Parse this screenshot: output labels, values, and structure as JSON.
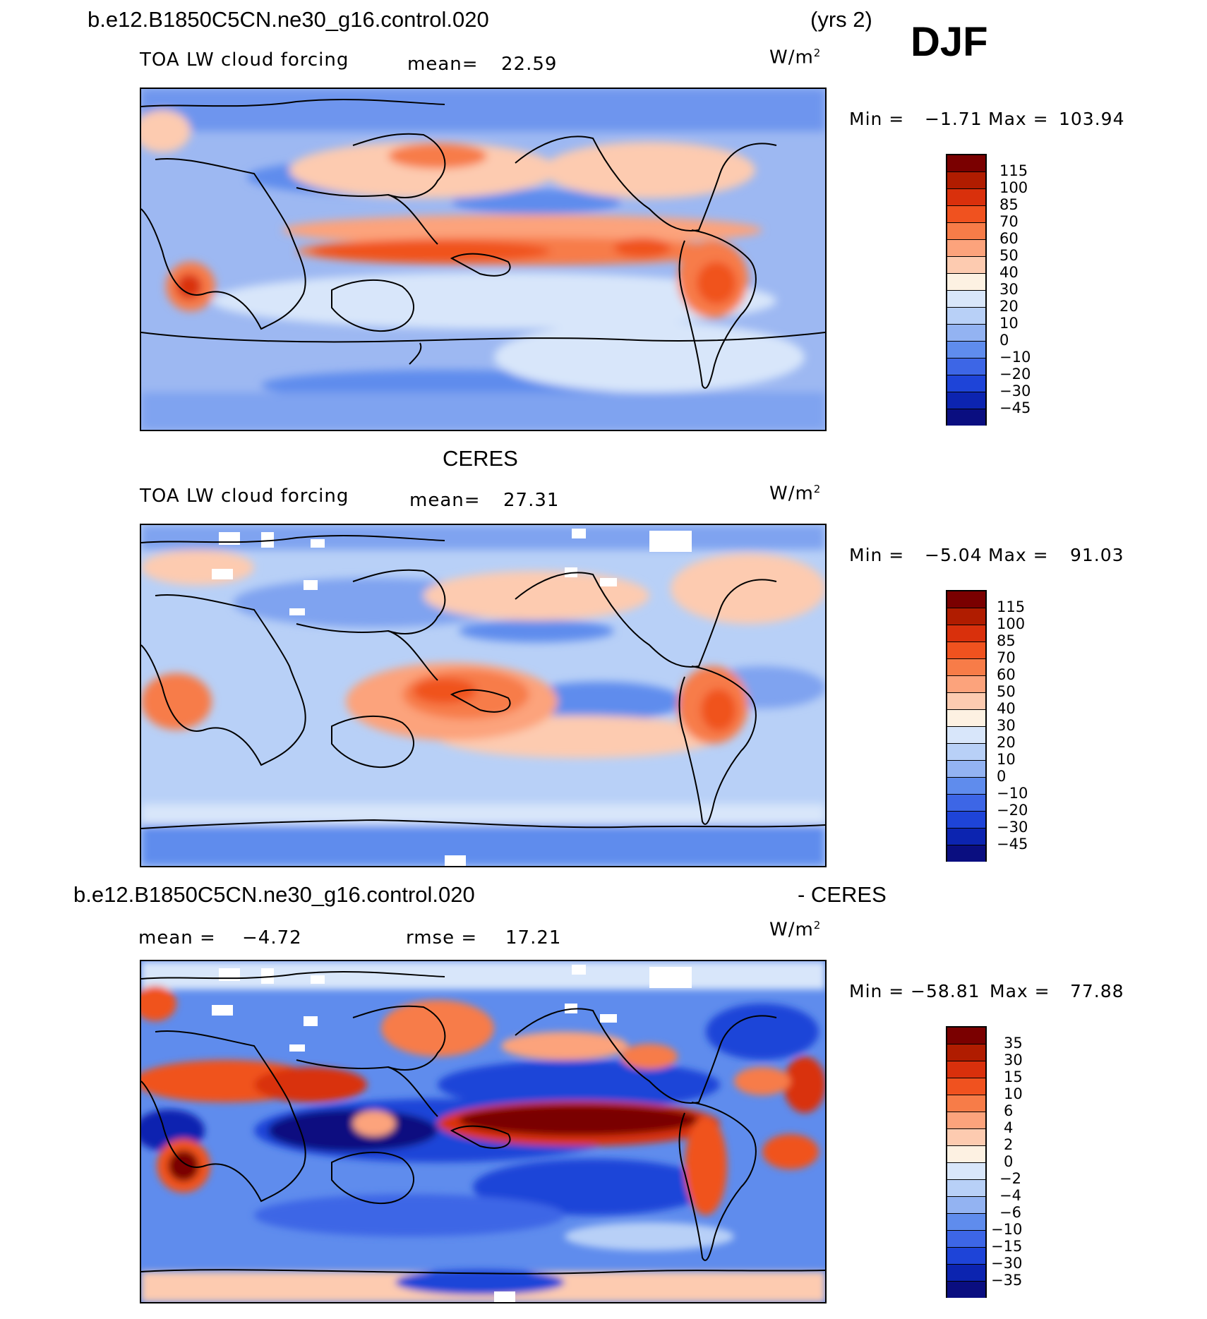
{
  "header": {
    "case_name": "b.e12.B1850C5CN.ne30_g16.control.020",
    "years": "(yrs 2)",
    "season": "DJF"
  },
  "panels": [
    {
      "id": "model",
      "title": "b.e12.B1850C5CN.ne30_g16.control.020",
      "subtitle": "TOA LW cloud forcing",
      "mean_label": "mean=",
      "mean_value": "22.59",
      "units": "W/m",
      "units_sup": "2",
      "min_label": "Min =",
      "min_value": "−1.71",
      "max_label": "Max =",
      "max_value": "103.94",
      "colorbar_labels": [
        "115",
        "100",
        "85",
        "70",
        "60",
        "50",
        "40",
        "30",
        "20",
        "10",
        "0",
        "−10",
        "−20",
        "−30",
        "−45"
      ]
    },
    {
      "id": "obs",
      "title": "CERES",
      "subtitle": "TOA LW cloud forcing",
      "mean_label": "mean=",
      "mean_value": "27.31",
      "units": "W/m",
      "units_sup": "2",
      "min_label": "Min =",
      "min_value": "−5.04",
      "max_label": "Max =",
      "max_value": "91.03",
      "colorbar_labels": [
        "115",
        "100",
        "85",
        "70",
        "60",
        "50",
        "40",
        "30",
        "20",
        "10",
        "0",
        "−10",
        "−20",
        "−30",
        "−45"
      ]
    },
    {
      "id": "diff",
      "title": "b.e12.B1850C5CN.ne30_g16.control.020",
      "title_suffix": "- CERES",
      "mean_label": "mean =",
      "mean_value": "−4.72",
      "rmse_label": "rmse =",
      "rmse_value": "17.21",
      "units": "W/m",
      "units_sup": "2",
      "min_label": "Min =",
      "min_value": "−58.81",
      "max_label": "Max =",
      "max_value": "77.88",
      "colorbar_labels": [
        "35",
        "30",
        "15",
        "10",
        "6",
        "4",
        "2",
        "0",
        "−2",
        "−4",
        "−6",
        "−10",
        "−15",
        "−30",
        "−35"
      ]
    }
  ],
  "chart_data": [
    {
      "type": "heatmap",
      "title": "b.e12.B1850C5CN.ne30_g16.control.020 TOA LW cloud forcing (DJF)",
      "units": "W/m2",
      "mean": 22.59,
      "min": -1.71,
      "max": 103.94,
      "contour_levels": [
        -45,
        -30,
        -20,
        -10,
        0,
        10,
        20,
        30,
        40,
        50,
        60,
        70,
        85,
        100,
        115
      ]
    },
    {
      "type": "heatmap",
      "title": "CERES TOA LW cloud forcing (DJF)",
      "units": "W/m2",
      "mean": 27.31,
      "min": -5.04,
      "max": 91.03,
      "contour_levels": [
        -45,
        -30,
        -20,
        -10,
        0,
        10,
        20,
        30,
        40,
        50,
        60,
        70,
        85,
        100,
        115
      ]
    },
    {
      "type": "heatmap",
      "title": "b.e12.B1850C5CN.ne30_g16.control.020 - CERES",
      "units": "W/m2",
      "mean": -4.72,
      "rmse": 17.21,
      "min": -58.81,
      "max": 77.88,
      "contour_levels": [
        -35,
        -30,
        -15,
        -10,
        -6,
        -4,
        -2,
        0,
        2,
        4,
        6,
        10,
        15,
        30,
        35
      ]
    }
  ],
  "colors": {
    "scale": [
      "#7a0000",
      "#b01c00",
      "#d9300c",
      "#f0521f",
      "#f77c48",
      "#fca37c",
      "#fdcbb0",
      "#fdf1e2",
      "#d8e6fa",
      "#b8d0f7",
      "#93b3f2",
      "#5f8ced",
      "#3d66e6",
      "#1e44d8",
      "#0c24b0",
      "#0a0e80"
    ]
  }
}
